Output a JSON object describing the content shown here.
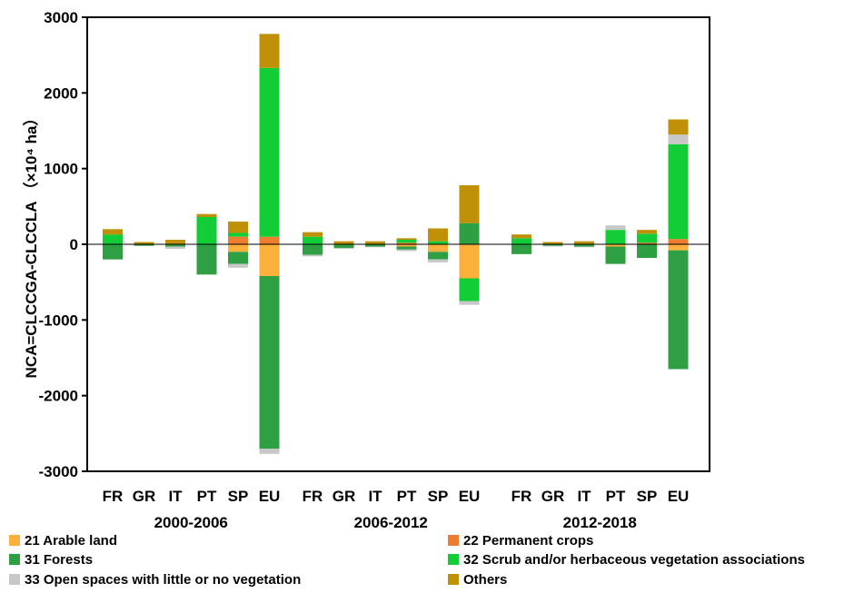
{
  "chart_data": {
    "type": "bar",
    "stacked": true,
    "ylabel": "NCA=CLCCGA-CLCCLA （×10⁴ ha）",
    "ylim": [
      -3000,
      3000
    ],
    "yticks": [
      3000,
      2000,
      1000,
      0,
      -1000,
      -2000,
      -3000
    ],
    "grid": false,
    "legend_position": "bottom",
    "groups": [
      "2000-2006",
      "2006-2012",
      "2012-2018"
    ],
    "categories": [
      "FR",
      "GR",
      "IT",
      "PT",
      "SP",
      "EU"
    ],
    "colors": {
      "21 Arable land": "#FBB03B",
      "22 Permanent crops": "#ED7D31",
      "31 Forests": "#2EA043",
      "32 Scrub and/or herbaceous vegetation associations": "#12CD36",
      "33 Open spaces with little or no vegetation": "#C8C8C8",
      "Others": "#C09108"
    },
    "series": [
      {
        "name": "21 Arable land",
        "values": [
          [
            0,
            0,
            0,
            0,
            -100,
            -420
          ],
          [
            0,
            0,
            0,
            -30,
            -100,
            -450
          ],
          [
            0,
            0,
            0,
            -30,
            0,
            -80
          ]
        ]
      },
      {
        "name": "22 Permanent crops",
        "values": [
          [
            0,
            0,
            0,
            0,
            100,
            100
          ],
          [
            0,
            0,
            0,
            20,
            0,
            0
          ],
          [
            0,
            0,
            0,
            0,
            20,
            70
          ]
        ]
      },
      {
        "name": "31 Forests",
        "values": [
          [
            -200,
            -20,
            -30,
            -400,
            -160,
            -2280
          ],
          [
            -140,
            -50,
            -30,
            -40,
            -100,
            280
          ],
          [
            -130,
            -20,
            -30,
            -230,
            -180,
            -1570
          ]
        ]
      },
      {
        "name": "32 Scrub and/or herbaceous vegetation associations",
        "values": [
          [
            130,
            0,
            0,
            360,
            50,
            2230
          ],
          [
            100,
            0,
            0,
            40,
            40,
            -300
          ],
          [
            80,
            0,
            0,
            190,
            120,
            1250
          ]
        ]
      },
      {
        "name": "33 Open spaces with little or no vegetation",
        "values": [
          [
            0,
            0,
            -30,
            0,
            -50,
            -70
          ],
          [
            -20,
            -10,
            -10,
            -20,
            -40,
            -50
          ],
          [
            0,
            -10,
            -10,
            60,
            0,
            130
          ]
        ]
      },
      {
        "name": "Others",
        "values": [
          [
            70,
            30,
            60,
            40,
            150,
            450
          ],
          [
            60,
            40,
            40,
            20,
            170,
            500
          ],
          [
            50,
            30,
            40,
            0,
            50,
            200
          ]
        ]
      }
    ]
  },
  "legend": [
    {
      "label": "21 Arable land",
      "color": "#FBB03B"
    },
    {
      "label": "22 Permanent crops",
      "color": "#ED7D31"
    },
    {
      "label": "31 Forests",
      "color": "#2EA043"
    },
    {
      "label": "32 Scrub and/or herbaceous vegetation associations",
      "color": "#12CD36"
    },
    {
      "label": "33 Open spaces with little or no vegetation",
      "color": "#C8C8C8"
    },
    {
      "label": "Others",
      "color": "#C09108"
    }
  ]
}
